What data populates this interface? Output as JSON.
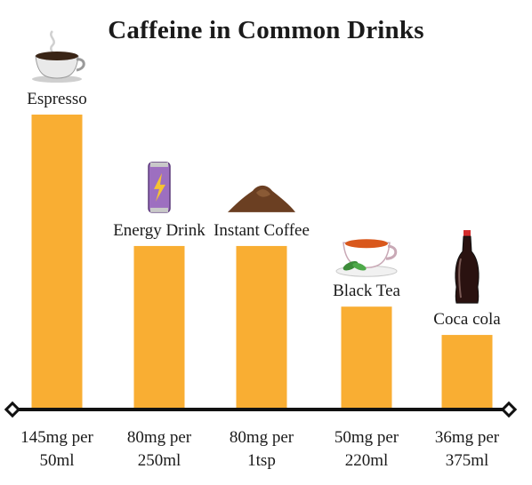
{
  "chart_data": {
    "type": "bar",
    "title": "Caffeine in Common Drinks",
    "categories": [
      "Espresso",
      "Energy Drink",
      "Instant Coffee",
      "Black Tea",
      "Coca cola"
    ],
    "values": [
      145,
      80,
      80,
      50,
      36
    ],
    "serving_labels": [
      [
        "145mg per",
        "50ml"
      ],
      [
        "80mg per",
        "250ml"
      ],
      [
        "80mg per",
        "1tsp"
      ],
      [
        "50mg per",
        "220ml"
      ],
      [
        "36mg per",
        "375ml"
      ]
    ],
    "icons": [
      "coffee-cup-icon",
      "energy-can-icon",
      "coffee-powder-icon",
      "tea-cup-icon",
      "cola-bottle-icon"
    ],
    "ylim": [
      0,
      145
    ],
    "grid": false,
    "colors": {
      "bar": "#F9AE33",
      "axis": "#111111"
    }
  }
}
